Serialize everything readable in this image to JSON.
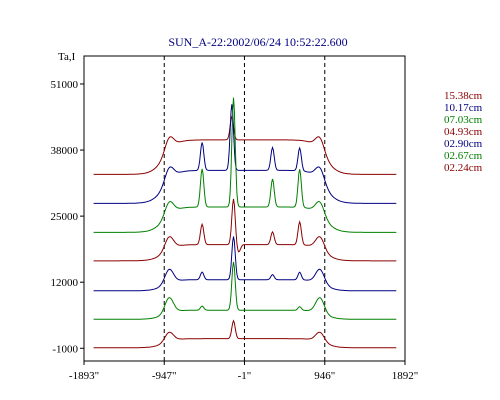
{
  "chart_data": {
    "type": "line",
    "title": "SUN_A-22:2002/06/24 10:52:22.600",
    "ylabel": "Ta,I",
    "xlabel": "",
    "x_ticks": [
      {
        "label": "-1893\"",
        "value": -1893
      },
      {
        "label": "-947\"",
        "value": -947
      },
      {
        "label": "-1\"",
        "value": -1
      },
      {
        "label": "946\"",
        "value": 946
      },
      {
        "label": "1892\"",
        "value": 1892
      }
    ],
    "y_ticks": [
      {
        "label": "51000",
        "value": 51000
      },
      {
        "label": "38000",
        "value": 38000
      },
      {
        "label": "25000",
        "value": 25000
      },
      {
        "label": "12000",
        "value": 12000
      },
      {
        "label": "-1000",
        "value": -1000
      }
    ],
    "xlim": [
      -1893,
      1892
    ],
    "ylim": [
      -3500,
      56500
    ],
    "grid": false,
    "reference_lines_x": [
      -947,
      -1,
      946
    ],
    "legend_position": "right",
    "series": [
      {
        "name": "15.38cm",
        "color": "#8b0000",
        "baseline": 33200,
        "disk": 6800,
        "limb": 2500,
        "peaks": [
          {
            "x": -150,
            "h": 4500
          }
        ],
        "dips": []
      },
      {
        "name": "10.17cm",
        "color": "#000080",
        "baseline": 27500,
        "disk": 6500,
        "limb": 2500,
        "peaks": [
          {
            "x": -500,
            "h": 5500
          },
          {
            "x": -150,
            "h": 13000
          },
          {
            "x": 330,
            "h": 4500
          },
          {
            "x": 650,
            "h": 4500
          }
        ],
        "dips": []
      },
      {
        "name": "07.03cm",
        "color": "#008000",
        "baseline": 21800,
        "disk": 5000,
        "limb": 2500,
        "peaks": [
          {
            "x": -500,
            "h": 7500
          },
          {
            "x": -130,
            "h": 21500
          },
          {
            "x": 330,
            "h": 5500
          },
          {
            "x": 650,
            "h": 7500
          }
        ],
        "dips": []
      },
      {
        "name": "04.93cm",
        "color": "#8b0000",
        "baseline": 16200,
        "disk": 3200,
        "limb": 2500,
        "peaks": [
          {
            "x": -500,
            "h": 4000
          },
          {
            "x": -130,
            "h": 9000
          },
          {
            "x": 330,
            "h": 2500
          },
          {
            "x": 650,
            "h": 4500
          }
        ],
        "dips": [
          {
            "x": -70,
            "h": 1500
          }
        ]
      },
      {
        "name": "02.90cm",
        "color": "#000080",
        "baseline": 10300,
        "disk": 2200,
        "limb": 2700,
        "peaks": [
          {
            "x": -500,
            "h": 1500
          },
          {
            "x": -130,
            "h": 8500
          },
          {
            "x": 330,
            "h": 1000
          },
          {
            "x": 650,
            "h": 1500
          }
        ],
        "dips": []
      },
      {
        "name": "02.67cm",
        "color": "#008000",
        "baseline": 4700,
        "disk": 1800,
        "limb": 3000,
        "peaks": [
          {
            "x": -500,
            "h": 800
          },
          {
            "x": -130,
            "h": 9500
          },
          {
            "x": 650,
            "h": 700
          }
        ],
        "dips": []
      },
      {
        "name": "02.24cm",
        "color": "#8b0000",
        "baseline": -900,
        "disk": 1800,
        "limb": 1800,
        "peaks": [
          {
            "x": -130,
            "h": 3500
          }
        ],
        "dips": []
      }
    ]
  }
}
